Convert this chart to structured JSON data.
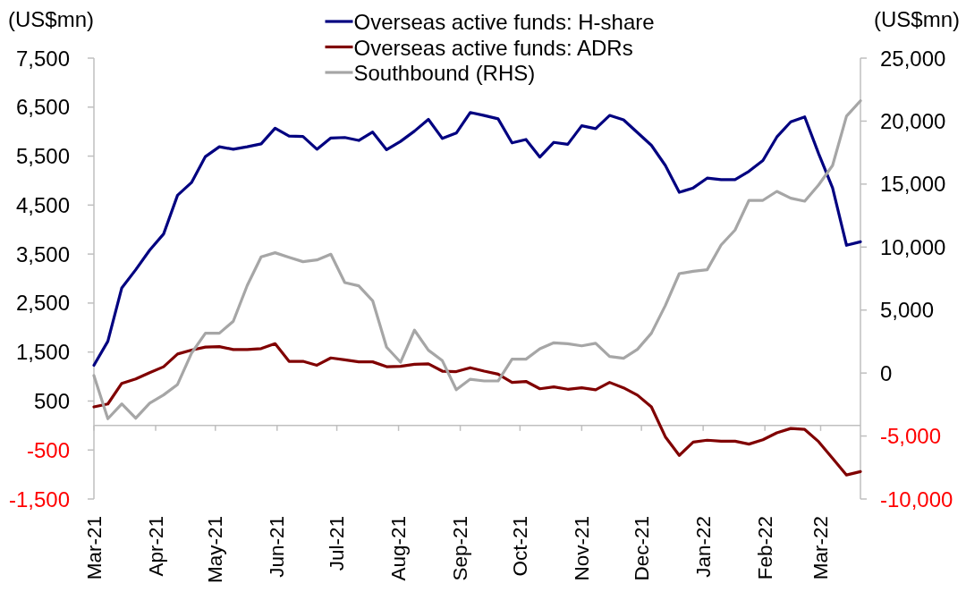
{
  "chart_data": {
    "type": "line",
    "ylabel": "(US$mn)",
    "y2label": "(US$mn)",
    "legend": "top",
    "x": [
      "2021-03-01",
      "2021-03-08",
      "2021-03-15",
      "2021-03-22",
      "2021-03-29",
      "2021-04-05",
      "2021-04-12",
      "2021-04-19",
      "2021-04-26",
      "2021-05-03",
      "2021-05-10",
      "2021-05-17",
      "2021-05-24",
      "2021-05-31",
      "2021-06-07",
      "2021-06-14",
      "2021-06-21",
      "2021-06-28",
      "2021-07-05",
      "2021-07-12",
      "2021-07-19",
      "2021-07-26",
      "2021-08-02",
      "2021-08-09",
      "2021-08-16",
      "2021-08-23",
      "2021-08-30",
      "2021-09-06",
      "2021-09-13",
      "2021-09-20",
      "2021-09-27",
      "2021-10-04",
      "2021-10-11",
      "2021-10-18",
      "2021-10-25",
      "2021-11-01",
      "2021-11-08",
      "2021-11-15",
      "2021-11-22",
      "2021-11-29",
      "2021-12-06",
      "2021-12-13",
      "2021-12-20",
      "2021-12-27",
      "2022-01-03",
      "2022-01-10",
      "2022-01-17",
      "2022-01-24",
      "2022-01-31",
      "2022-02-07",
      "2022-02-14",
      "2022-02-21",
      "2022-02-28",
      "2022-03-07",
      "2022-03-14",
      "2022-03-21"
    ],
    "xlim": [
      "2021-03-01",
      "2022-03-21"
    ],
    "xticks": [
      {
        "value": "2021-03-01",
        "label": "Mar-21"
      },
      {
        "value": "2021-04-01",
        "label": "Apr-21"
      },
      {
        "value": "2021-05-01",
        "label": "May-21"
      },
      {
        "value": "2021-06-01",
        "label": "Jun-21"
      },
      {
        "value": "2021-07-01",
        "label": "Jul-21"
      },
      {
        "value": "2021-08-01",
        "label": "Aug-21"
      },
      {
        "value": "2021-09-01",
        "label": "Sep-21"
      },
      {
        "value": "2021-10-01",
        "label": "Oct-21"
      },
      {
        "value": "2021-11-01",
        "label": "Nov-21"
      },
      {
        "value": "2021-12-01",
        "label": "Dec-21"
      },
      {
        "value": "2022-01-01",
        "label": "Jan-22"
      },
      {
        "value": "2022-02-01",
        "label": "Feb-22"
      },
      {
        "value": "2022-03-01",
        "label": "Mar-22"
      }
    ],
    "ylim": [
      -1500,
      7500
    ],
    "yticks": [
      {
        "value": -1500,
        "label": "-1,500"
      },
      -500,
      500,
      {
        "value": 1500,
        "label": "1,500"
      },
      {
        "value": 2500,
        "label": "2,500"
      },
      {
        "value": 3500,
        "label": "3,500"
      },
      {
        "value": 4500,
        "label": "4,500"
      },
      {
        "value": 5500,
        "label": "5,500"
      },
      {
        "value": 6500,
        "label": "6,500"
      },
      {
        "value": 7500,
        "label": "7,500"
      }
    ],
    "y2lim": [
      -10000,
      25000
    ],
    "y2ticks": [
      {
        "value": -10000,
        "label": "-10,000"
      },
      {
        "value": -5000,
        "label": "-5,000"
      },
      0,
      {
        "value": 5000,
        "label": "5,000"
      },
      {
        "value": 10000,
        "label": "10,000"
      },
      {
        "value": 15000,
        "label": "15,000"
      },
      {
        "value": 20000,
        "label": "20,000"
      },
      {
        "value": 25000,
        "label": "25,000"
      }
    ],
    "series": [
      {
        "name": "Overseas active funds: H-share",
        "color": "#000080",
        "values": [
          1230,
          1720,
          2810,
          3180,
          3580,
          3910,
          4700,
          4960,
          5490,
          5690,
          5640,
          5690,
          5750,
          6070,
          5910,
          5900,
          5640,
          5870,
          5880,
          5820,
          5990,
          5630,
          5800,
          6010,
          6250,
          5860,
          5970,
          6390,
          6330,
          6260,
          5770,
          5840,
          5480,
          5780,
          5740,
          6120,
          6060,
          6330,
          6240,
          5980,
          5720,
          5310,
          4760,
          4850,
          5050,
          5020,
          5020,
          5190,
          5410,
          5890,
          6200,
          6300,
          5550,
          4850,
          3680,
          3750
        ]
      },
      {
        "name": "Overseas active funds: ADRs",
        "color": "#800000",
        "values": [
          380,
          440,
          860,
          950,
          1080,
          1200,
          1460,
          1540,
          1600,
          1610,
          1550,
          1550,
          1570,
          1670,
          1310,
          1310,
          1230,
          1380,
          1340,
          1300,
          1300,
          1200,
          1210,
          1250,
          1260,
          1110,
          1100,
          1180,
          1110,
          1050,
          880,
          900,
          750,
          790,
          740,
          770,
          730,
          880,
          770,
          620,
          380,
          -230,
          -610,
          -340,
          -300,
          -320,
          -320,
          -380,
          -290,
          -150,
          -60,
          -80,
          -330,
          -670,
          -1010,
          -940
        ]
      },
      {
        "name": "Southbound (RHS)",
        "color": "#a6a6a6",
        "axis": "y2",
        "values": [
          -200,
          -3630,
          -2450,
          -3590,
          -2400,
          -1740,
          -910,
          1570,
          3160,
          3160,
          4110,
          6950,
          9220,
          9550,
          9190,
          8840,
          8980,
          9430,
          7180,
          6920,
          5740,
          2050,
          860,
          3400,
          1810,
          980,
          -1320,
          -490,
          -630,
          -630,
          1100,
          1100,
          1930,
          2400,
          2330,
          2160,
          2360,
          1310,
          1170,
          1880,
          3160,
          5360,
          7890,
          8080,
          8200,
          10160,
          11350,
          13710,
          13710,
          14420,
          13880,
          13640,
          14940,
          16480,
          20390,
          21610
        ]
      }
    ]
  }
}
